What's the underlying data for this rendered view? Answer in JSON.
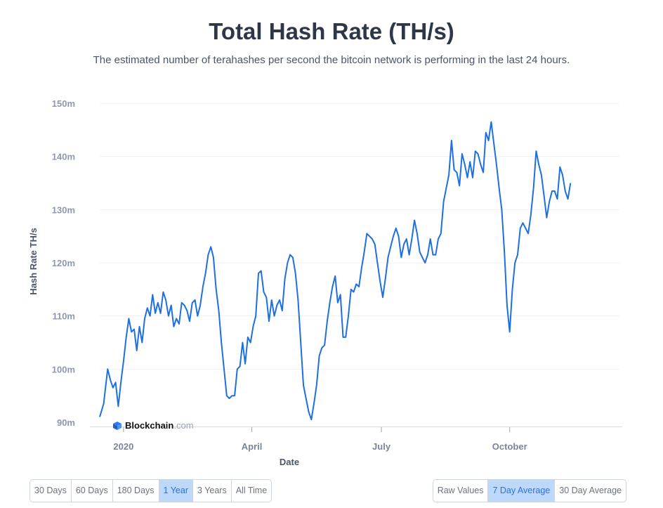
{
  "header": {
    "title": "Total Hash Rate (TH/s)",
    "subtitle": "The estimated number of terahashes per second the bitcoin network is performing in the last 24 hours."
  },
  "brand": {
    "name_strong": "Blockchain",
    "name_light": ".com",
    "icon": "blockchain-cube-icon"
  },
  "range_buttons": [
    {
      "label": "30 Days",
      "active": false
    },
    {
      "label": "60 Days",
      "active": false
    },
    {
      "label": "180 Days",
      "active": false
    },
    {
      "label": "1 Year",
      "active": true
    },
    {
      "label": "3 Years",
      "active": false
    },
    {
      "label": "All Time",
      "active": false
    }
  ],
  "mode_buttons": [
    {
      "label": "Raw Values",
      "active": false
    },
    {
      "label": "7 Day Average",
      "active": true
    },
    {
      "label": "30 Day Average",
      "active": false
    }
  ],
  "colors": {
    "line": "#1e6fe0",
    "grid": "#eef1f5",
    "active_button": "#bcd8fb"
  },
  "chart_data": {
    "type": "line",
    "title": "Total Hash Rate (TH/s)",
    "xlabel": "Date",
    "ylabel": "Hash Rate TH/s",
    "ylim": [
      90,
      150
    ],
    "yticks": [
      90,
      100,
      110,
      120,
      130,
      140,
      150
    ],
    "ytick_labels": [
      "90m",
      "100m",
      "110m",
      "120m",
      "130m",
      "140m",
      "150m"
    ],
    "xlim": [
      0,
      393
    ],
    "x_ticks": [
      {
        "label": "2020",
        "x": 18
      },
      {
        "label": "April",
        "x": 115
      },
      {
        "label": "July",
        "x": 213
      },
      {
        "label": "October",
        "x": 310
      }
    ],
    "grid": true,
    "series": [
      {
        "values": [
          [
            0,
            91.0
          ],
          [
            3,
            93.5
          ],
          [
            6,
            100.0
          ],
          [
            8,
            98.0
          ],
          [
            10,
            96.5
          ],
          [
            12,
            97.5
          ],
          [
            14,
            93.0
          ],
          [
            16,
            97.5
          ],
          [
            18,
            101.5
          ],
          [
            20,
            106.0
          ],
          [
            22,
            109.5
          ],
          [
            24,
            107.0
          ],
          [
            26,
            107.5
          ],
          [
            28,
            103.5
          ],
          [
            30,
            108.0
          ],
          [
            32,
            105.0
          ],
          [
            34,
            109.5
          ],
          [
            36,
            111.5
          ],
          [
            38,
            110.0
          ],
          [
            40,
            114.0
          ],
          [
            42,
            110.5
          ],
          [
            44,
            112.5
          ],
          [
            46,
            110.5
          ],
          [
            48,
            114.5
          ],
          [
            50,
            113.0
          ],
          [
            52,
            110.0
          ],
          [
            54,
            112.0
          ],
          [
            56,
            108.0
          ],
          [
            58,
            109.5
          ],
          [
            60,
            108.5
          ],
          [
            62,
            112.5
          ],
          [
            64,
            112.0
          ],
          [
            66,
            111.0
          ],
          [
            68,
            109.0
          ],
          [
            70,
            112.5
          ],
          [
            72,
            113.0
          ],
          [
            74,
            110.0
          ],
          [
            76,
            112.0
          ],
          [
            78,
            115.5
          ],
          [
            80,
            118.0
          ],
          [
            82,
            121.5
          ],
          [
            84,
            123.0
          ],
          [
            86,
            121.0
          ],
          [
            88,
            115.0
          ],
          [
            90,
            111.0
          ],
          [
            92,
            105.0
          ],
          [
            94,
            100.0
          ],
          [
            96,
            95.0
          ],
          [
            98,
            94.5
          ],
          [
            100,
            95.0
          ],
          [
            102,
            95.0
          ],
          [
            104,
            100.0
          ],
          [
            106,
            100.5
          ],
          [
            108,
            105.0
          ],
          [
            110,
            101.0
          ],
          [
            112,
            106.0
          ],
          [
            114,
            105.0
          ],
          [
            116,
            108.0
          ],
          [
            118,
            110.0
          ],
          [
            120,
            118.0
          ],
          [
            122,
            118.5
          ],
          [
            124,
            114.5
          ],
          [
            126,
            113.5
          ],
          [
            128,
            109.0
          ],
          [
            130,
            113.0
          ],
          [
            132,
            110.0
          ],
          [
            134,
            112.0
          ],
          [
            136,
            113.0
          ],
          [
            138,
            111.0
          ],
          [
            140,
            117.0
          ],
          [
            142,
            120.0
          ],
          [
            144,
            121.5
          ],
          [
            146,
            121.0
          ],
          [
            148,
            118.0
          ],
          [
            150,
            113.0
          ],
          [
            152,
            105.0
          ],
          [
            154,
            97.0
          ],
          [
            156,
            94.5
          ],
          [
            158,
            92.0
          ],
          [
            160,
            90.5
          ],
          [
            162,
            93.5
          ],
          [
            164,
            97.0
          ],
          [
            166,
            102.5
          ],
          [
            168,
            104.0
          ],
          [
            170,
            104.5
          ],
          [
            172,
            109.0
          ],
          [
            174,
            112.5
          ],
          [
            176,
            115.5
          ],
          [
            178,
            117.5
          ],
          [
            180,
            112.5
          ],
          [
            182,
            114.0
          ],
          [
            184,
            106.0
          ],
          [
            186,
            106.0
          ],
          [
            188,
            110.0
          ],
          [
            190,
            115.0
          ],
          [
            192,
            114.5
          ],
          [
            194,
            116.0
          ],
          [
            196,
            115.5
          ],
          [
            198,
            119.0
          ],
          [
            200,
            122.0
          ],
          [
            202,
            125.5
          ],
          [
            204,
            125.0
          ],
          [
            206,
            124.5
          ],
          [
            208,
            123.5
          ],
          [
            210,
            120.0
          ],
          [
            212,
            116.5
          ],
          [
            214,
            113.5
          ],
          [
            216,
            117.0
          ],
          [
            218,
            121.0
          ],
          [
            220,
            123.0
          ],
          [
            222,
            125.0
          ],
          [
            224,
            126.5
          ],
          [
            226,
            125.0
          ],
          [
            228,
            121.0
          ],
          [
            230,
            123.5
          ],
          [
            232,
            124.5
          ],
          [
            234,
            121.5
          ],
          [
            236,
            124.5
          ],
          [
            238,
            128.0
          ],
          [
            240,
            125.5
          ],
          [
            242,
            122.0
          ],
          [
            244,
            121.0
          ],
          [
            246,
            120.0
          ],
          [
            248,
            121.5
          ],
          [
            250,
            124.5
          ],
          [
            252,
            121.5
          ],
          [
            254,
            121.5
          ],
          [
            256,
            124.5
          ],
          [
            258,
            125.5
          ],
          [
            260,
            131.5
          ],
          [
            262,
            134.0
          ],
          [
            264,
            136.5
          ],
          [
            266,
            143.0
          ],
          [
            268,
            137.5
          ],
          [
            270,
            137.0
          ],
          [
            272,
            134.5
          ],
          [
            274,
            140.5
          ],
          [
            276,
            138.5
          ],
          [
            278,
            136.0
          ],
          [
            280,
            139.0
          ],
          [
            282,
            136.0
          ],
          [
            284,
            141.0
          ],
          [
            286,
            140.5
          ],
          [
            288,
            138.5
          ],
          [
            290,
            137.0
          ],
          [
            292,
            144.5
          ],
          [
            294,
            143.0
          ],
          [
            296,
            146.5
          ],
          [
            298,
            142.5
          ],
          [
            300,
            138.5
          ],
          [
            302,
            134.0
          ],
          [
            304,
            130.0
          ],
          [
            306,
            122.0
          ],
          [
            308,
            112.0
          ],
          [
            310,
            107.0
          ],
          [
            312,
            115.0
          ],
          [
            314,
            120.0
          ],
          [
            316,
            121.5
          ],
          [
            318,
            126.5
          ],
          [
            320,
            127.5
          ],
          [
            322,
            126.5
          ],
          [
            324,
            125.5
          ],
          [
            326,
            129.0
          ],
          [
            328,
            134.0
          ],
          [
            330,
            141.0
          ],
          [
            332,
            138.5
          ],
          [
            334,
            136.5
          ],
          [
            336,
            132.5
          ],
          [
            338,
            128.5
          ],
          [
            340,
            131.5
          ],
          [
            342,
            133.5
          ],
          [
            344,
            133.5
          ],
          [
            346,
            132.0
          ],
          [
            348,
            138.0
          ],
          [
            350,
            136.5
          ],
          [
            352,
            133.5
          ],
          [
            354,
            132.0
          ],
          [
            356,
            135.0
          ]
        ]
      }
    ]
  }
}
